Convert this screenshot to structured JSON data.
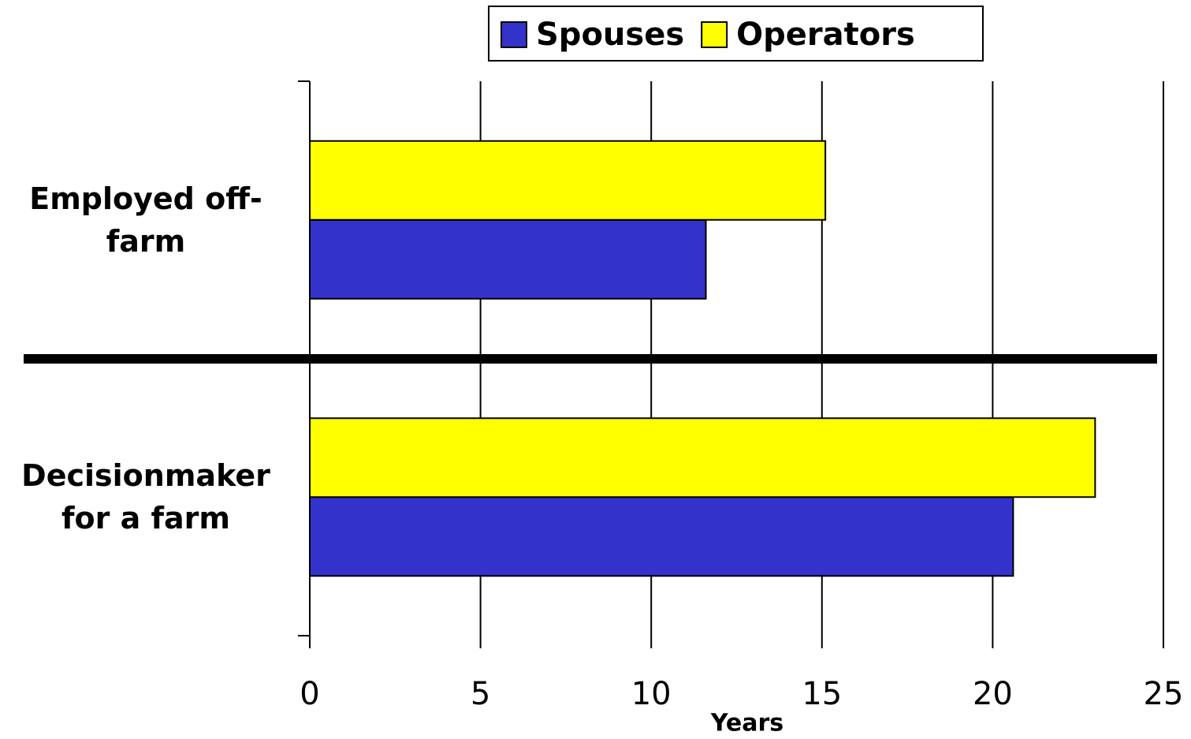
{
  "chart_data": {
    "type": "hbar",
    "categories": [
      "Employed off-farm",
      "Decisionmaker for a farm"
    ],
    "series": [
      {
        "name": "Spouses",
        "color": "#3333cc",
        "values": [
          11.6,
          20.6
        ]
      },
      {
        "name": "Operators",
        "color": "#ffff00",
        "values": [
          15.1,
          23.0
        ]
      }
    ],
    "xlabel": "Years",
    "xlim": [
      0,
      25
    ],
    "xticks": [
      0,
      5,
      10,
      15,
      20,
      25
    ],
    "grid": true,
    "legend": "top"
  }
}
